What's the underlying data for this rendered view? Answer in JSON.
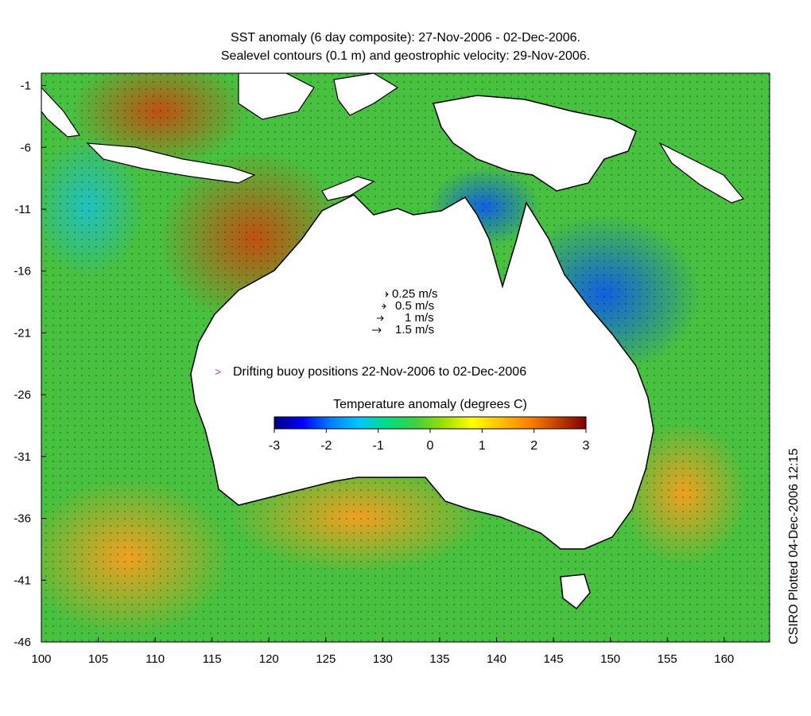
{
  "title_line_1": "SST anomaly (6 day composite): 27-Nov-2006 - 02-Dec-2006.",
  "title_line_2": "Sealevel contours (0.1 m) and geostrophic velocity: 29-Nov-2006.",
  "side_label": "CSIRO Plotted 04-Dec-2006 12:15",
  "map": {
    "lon_range": [
      100,
      164
    ],
    "lat_range": [
      -46,
      0
    ],
    "lon_ticks": [
      "100",
      "105",
      "110",
      "115",
      "120",
      "125",
      "130",
      "135",
      "140",
      "145",
      "150",
      "155",
      "160"
    ],
    "lat_ticks": [
      "-1",
      "-6",
      "-11",
      "-16",
      "-21",
      "-26",
      "-31",
      "-36",
      "-41",
      "-46"
    ]
  },
  "velocity_legend": [
    {
      "label": "0.25 m/s",
      "speed": 0.25
    },
    {
      "label": "0.5 m/s",
      "speed": 0.5
    },
    {
      "label": "1 m/s",
      "speed": 1
    },
    {
      "label": "1.5 m/s",
      "speed": 1.5
    }
  ],
  "buoy_legend": {
    "marker": ">",
    "label": "Drifting buoy positions 22-Nov-2006 to 02-Dec-2006",
    "color": "#cc33cc"
  },
  "colorbar": {
    "title": "Temperature anomaly (degrees C)",
    "range": [
      -3,
      3
    ],
    "tick_labels": [
      "-3",
      "-2",
      "-1",
      "0",
      "1",
      "2",
      "3"
    ],
    "stops": [
      "#00007f",
      "#0000ff",
      "#0080ff",
      "#00c8ff",
      "#00e080",
      "#40d040",
      "#a0e000",
      "#ffff00",
      "#ffc000",
      "#ff8000",
      "#c04000",
      "#800000"
    ]
  },
  "colors": {
    "land": "#ffffff",
    "coastline": "#000000",
    "ocean_warm": "#e08020",
    "ocean_neutral": "#40c040",
    "ocean_cool": "#1090e0"
  }
}
